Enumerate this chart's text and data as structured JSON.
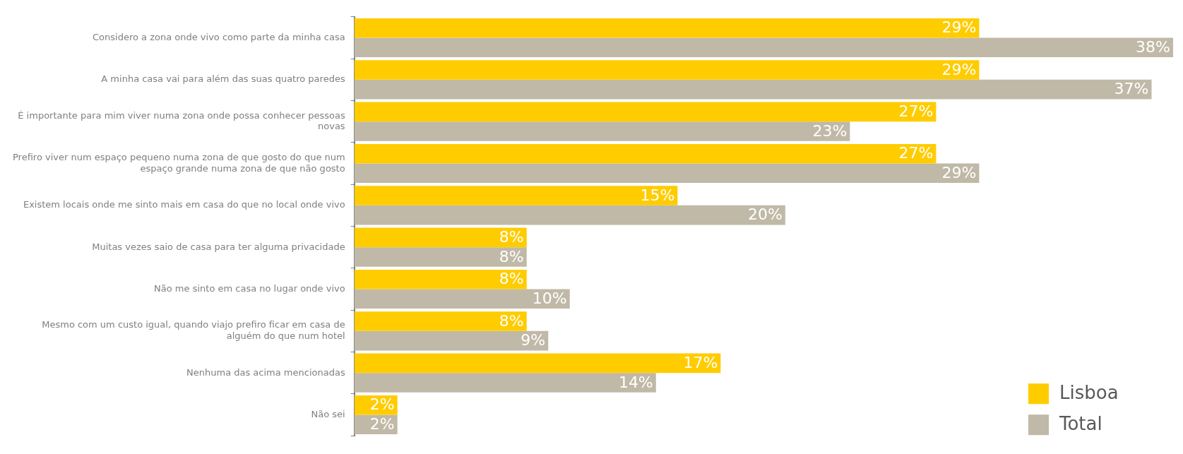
{
  "chart_data": {
    "type": "bar",
    "orientation": "horizontal",
    "categories": [
      "Considero a zona onde vivo como parte da minha casa",
      "A minha casa vai para além das suas quatro paredes",
      "É importante para mim viver numa zona onde possa conhecer pessoas novas",
      "Prefiro viver num espaço pequeno numa zona de que gosto do que num espaço grande numa zona de que não gosto",
      "Existem locais onde me sinto mais em casa do que no local onde vivo",
      "Muitas vezes saio de casa para ter alguma privacidade",
      "Não me sinto em casa no lugar onde vivo",
      "Mesmo com um custo igual, quando viajo prefiro ficar em casa de alguém do que num hotel",
      "Nenhuma das acima mencionadas",
      "Não sei"
    ],
    "series": [
      {
        "name": "Lisboa",
        "color": "#ffcc00",
        "values": [
          29,
          29,
          27,
          27,
          15,
          8,
          8,
          8,
          17,
          2
        ],
        "value_labels": [
          "29%",
          "29%",
          "27%",
          "27%",
          "15%",
          "8%",
          "8%",
          "8%",
          "17%",
          "2%"
        ]
      },
      {
        "name": "Total",
        "color": "#c0b9a7",
        "values": [
          38,
          37,
          23,
          29,
          20,
          8,
          10,
          9,
          14,
          2
        ],
        "value_labels": [
          "38%",
          "37%",
          "23%",
          "29%",
          "20%",
          "8%",
          "10%",
          "9%",
          "14%",
          "2%"
        ]
      }
    ],
    "legend": "bottom right"
  }
}
